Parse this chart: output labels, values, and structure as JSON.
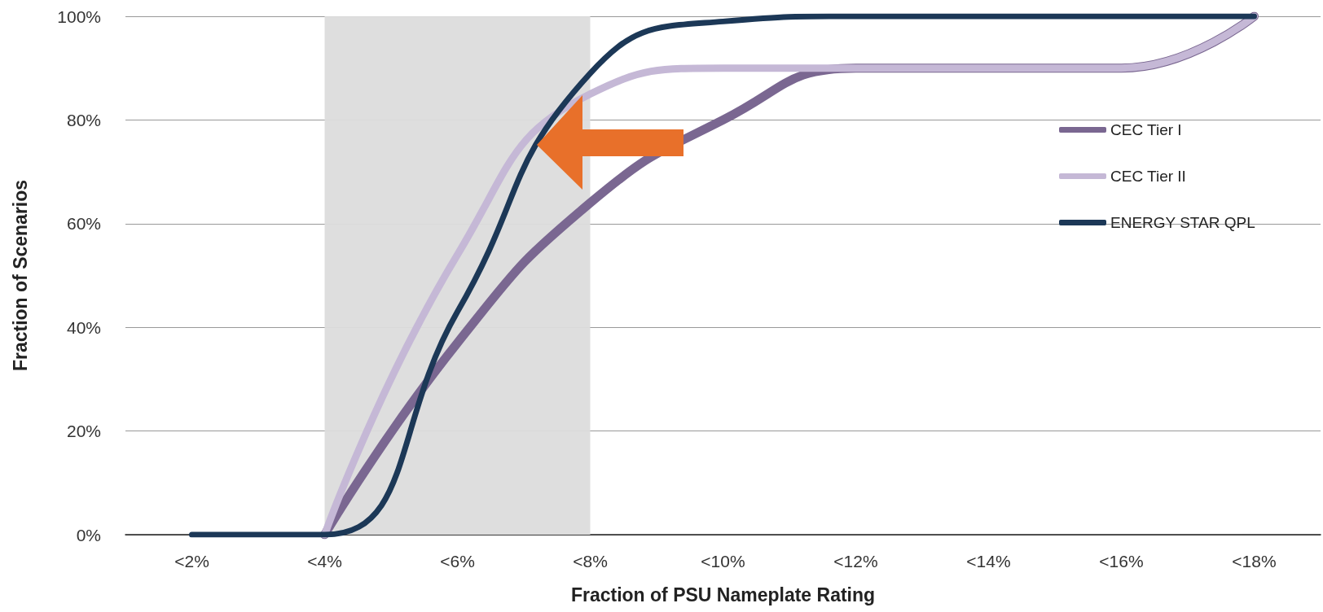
{
  "chart_data": {
    "type": "line",
    "xlabel": "Fraction of PSU Nameplate Rating",
    "ylabel": "Fraction of Scenarios",
    "categories": [
      "<2%",
      "<4%",
      "<6%",
      "<8%",
      "<10%",
      "<12%",
      "<14%",
      "<16%",
      "<18%"
    ],
    "series": [
      {
        "name": "CEC Tier I",
        "color": "#7a6791",
        "values": [
          null,
          0,
          37,
          64,
          80,
          90,
          90,
          90,
          100
        ]
      },
      {
        "name": "CEC Tier II",
        "color": "#c5b8d6",
        "values": [
          null,
          0,
          54,
          85,
          90,
          90,
          90,
          90,
          100
        ]
      },
      {
        "name": "ENERGY STAR QPL",
        "color": "#1c3857",
        "values": [
          0,
          0,
          43,
          89,
          99,
          100,
          100,
          100,
          100
        ]
      }
    ],
    "ylim": [
      0,
      100
    ],
    "yticks": [
      {
        "value": 0,
        "label": "0%"
      },
      {
        "value": 20,
        "label": "20%"
      },
      {
        "value": 40,
        "label": "40%"
      },
      {
        "value": 60,
        "label": "60%"
      },
      {
        "value": 80,
        "label": "80%"
      },
      {
        "value": 100,
        "label": "100%"
      }
    ],
    "bands": [
      {
        "axis": "x",
        "from": "<4%",
        "to": "<8%",
        "color": "#dcdcdc"
      }
    ],
    "grid": "y",
    "legend": "right",
    "marker": "none",
    "line_style": "solid"
  }
}
